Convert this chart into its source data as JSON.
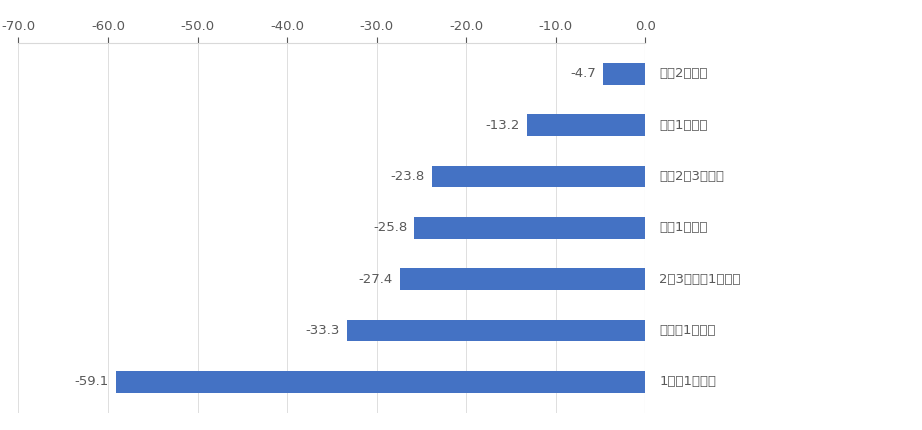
{
  "categories": [
    "週に2回以上",
    "週に1回程度",
    "月に2～3回程度",
    "月に1回程度",
    "2～3か月に1回程度",
    "半年に1回程度",
    "1年に1回程度"
  ],
  "values": [
    -4.7,
    -13.2,
    -23.8,
    -25.8,
    -27.4,
    -33.3,
    -59.1
  ],
  "bar_color": "#4472C4",
  "background_color": "#FFFFFF",
  "xlim": [
    -70.0,
    0.0
  ],
  "xticks": [
    -70.0,
    -60.0,
    -50.0,
    -40.0,
    -30.0,
    -20.0,
    -10.0,
    0.0
  ],
  "label_fontsize": 9.5,
  "tick_fontsize": 9.5,
  "value_fontsize": 9.5,
  "bar_height": 0.42,
  "label_color": "#595959",
  "value_color": "#595959",
  "tick_color": "#595959",
  "grid_color": "#D9D9D9",
  "spine_color": "#D9D9D9"
}
